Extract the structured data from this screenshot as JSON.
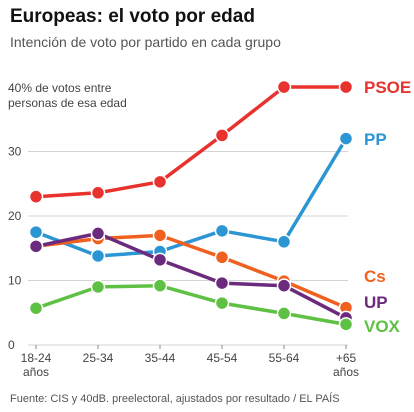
{
  "header": {
    "title": "Europeas: el voto por edad",
    "subtitle": "Intención de voto por partido en cada grupo"
  },
  "footer": {
    "source": "Fuente: CIS y 40dB. preelectoral, ajustados por resultado / EL PAÍS"
  },
  "chart_data": {
    "type": "line",
    "title": "Europeas: el voto por edad",
    "subtitle": "Intención de voto por partido en cada grupo",
    "annotation": [
      "40% de votos entre",
      "personas de esa edad"
    ],
    "categories": [
      [
        "18-24",
        "años"
      ],
      [
        "25-34"
      ],
      [
        "35-44"
      ],
      [
        "45-54"
      ],
      [
        "55-64"
      ],
      [
        "+65",
        "años"
      ]
    ],
    "ylim": [
      0,
      40
    ],
    "yticks": [
      0,
      10,
      20,
      30
    ],
    "grid": true,
    "series": [
      {
        "name": "PSOE",
        "color": "#e8322e",
        "values": [
          23,
          23.6,
          25.3,
          32.5,
          40,
          40
        ]
      },
      {
        "name": "PP",
        "color": "#2c95d4",
        "values": [
          17.5,
          13.8,
          14.5,
          17.7,
          16,
          32
        ]
      },
      {
        "name": "Cs",
        "color": "#f0601e",
        "values": [
          15.3,
          16.5,
          17,
          13.6,
          9.9,
          5.8
        ]
      },
      {
        "name": "UP",
        "color": "#6b2a7d",
        "values": [
          15.3,
          17.3,
          13.2,
          9.6,
          9.2,
          4.2
        ]
      },
      {
        "name": "VOX",
        "color": "#5ec144",
        "values": [
          5.7,
          9,
          9.2,
          6.5,
          4.9,
          3.2
        ]
      }
    ]
  }
}
